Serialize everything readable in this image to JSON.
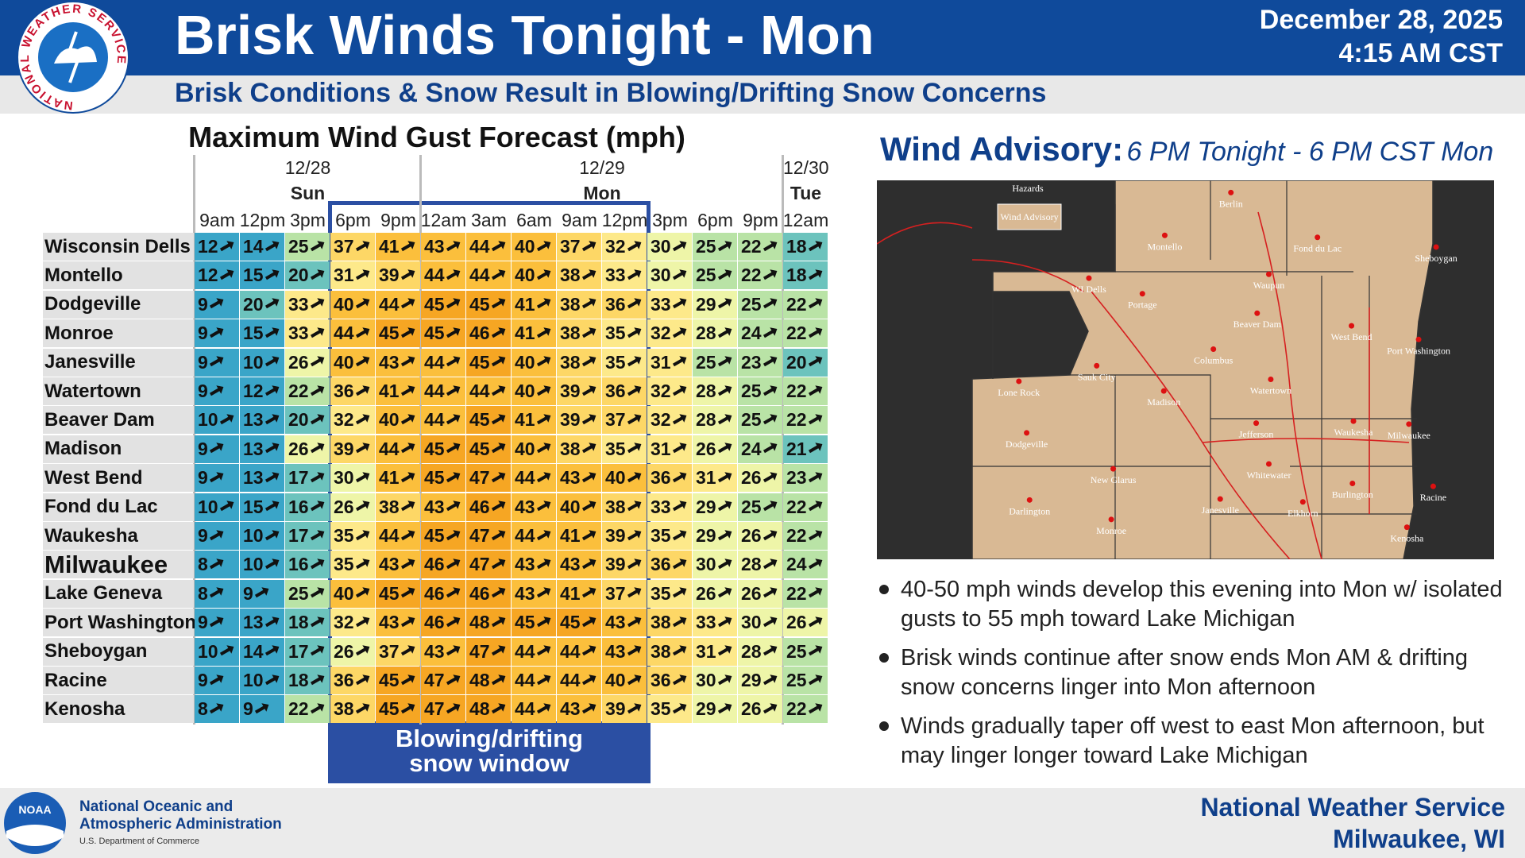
{
  "header": {
    "title": "Brisk Winds Tonight - Mon",
    "subtitle": "Brisk Conditions & Snow Result in Blowing/Drifting Snow Concerns",
    "date": "December 28, 2025",
    "time": "4:15 AM CST",
    "logo_text": "NATIONAL WEATHER SERVICE"
  },
  "table": {
    "title": "Maximum Wind Gust Forecast (mph)",
    "dates": [
      "12/28",
      "12/29",
      "12/30"
    ],
    "days": [
      "Sun",
      "Mon",
      "Tue"
    ],
    "times": [
      "9am",
      "12pm",
      "3pm",
      "6pm",
      "9pm",
      "12am",
      "3am",
      "6am",
      "9am",
      "12pm",
      "3pm",
      "6pm",
      "9pm",
      "12am"
    ],
    "rows": [
      {
        "name": "Wisconsin Dells",
        "values": [
          12,
          14,
          25,
          37,
          41,
          43,
          44,
          40,
          37,
          32,
          30,
          25,
          22,
          18
        ]
      },
      {
        "name": "Montello",
        "values": [
          12,
          15,
          20,
          31,
          39,
          44,
          44,
          40,
          38,
          33,
          30,
          25,
          22,
          18
        ]
      },
      {
        "name": "Dodgeville",
        "values": [
          9,
          20,
          33,
          40,
          44,
          45,
          45,
          41,
          38,
          36,
          33,
          29,
          25,
          22
        ]
      },
      {
        "name": "Monroe",
        "values": [
          9,
          15,
          33,
          44,
          45,
          45,
          46,
          41,
          38,
          35,
          32,
          28,
          24,
          22
        ]
      },
      {
        "name": "Janesville",
        "values": [
          9,
          10,
          26,
          40,
          43,
          44,
          45,
          40,
          38,
          35,
          31,
          25,
          23,
          20
        ]
      },
      {
        "name": "Watertown",
        "values": [
          9,
          12,
          22,
          36,
          41,
          44,
          44,
          40,
          39,
          36,
          32,
          28,
          25,
          22
        ]
      },
      {
        "name": "Beaver Dam",
        "values": [
          10,
          13,
          20,
          32,
          40,
          44,
          45,
          41,
          39,
          37,
          32,
          28,
          25,
          22
        ]
      },
      {
        "name": "Madison",
        "values": [
          9,
          13,
          26,
          39,
          44,
          45,
          45,
          40,
          38,
          35,
          31,
          26,
          24,
          21
        ]
      },
      {
        "name": "West Bend",
        "values": [
          9,
          13,
          17,
          30,
          41,
          45,
          47,
          44,
          43,
          40,
          36,
          31,
          26,
          23
        ]
      },
      {
        "name": "Fond du Lac",
        "values": [
          10,
          15,
          16,
          26,
          38,
          43,
          46,
          43,
          40,
          38,
          33,
          29,
          25,
          22
        ]
      },
      {
        "name": "Waukesha",
        "values": [
          9,
          10,
          17,
          35,
          44,
          45,
          47,
          44,
          41,
          39,
          35,
          29,
          26,
          22
        ]
      },
      {
        "name": "Milwaukee",
        "values": [
          8,
          10,
          16,
          35,
          43,
          46,
          47,
          43,
          43,
          39,
          36,
          30,
          28,
          24
        ]
      },
      {
        "name": "Lake Geneva",
        "values": [
          8,
          9,
          25,
          40,
          45,
          46,
          46,
          43,
          41,
          37,
          35,
          26,
          26,
          22
        ]
      },
      {
        "name": "Port Washington",
        "values": [
          9,
          13,
          18,
          32,
          43,
          46,
          48,
          45,
          45,
          43,
          38,
          33,
          30,
          26
        ]
      },
      {
        "name": "Sheboygan",
        "values": [
          10,
          14,
          17,
          26,
          37,
          43,
          47,
          44,
          44,
          43,
          38,
          31,
          28,
          25
        ]
      },
      {
        "name": "Racine",
        "values": [
          9,
          10,
          18,
          36,
          45,
          47,
          48,
          44,
          44,
          40,
          36,
          30,
          29,
          25
        ]
      },
      {
        "name": "Kenosha",
        "values": [
          8,
          9,
          22,
          38,
          45,
          47,
          48,
          44,
          43,
          39,
          35,
          29,
          26,
          22
        ]
      }
    ]
  },
  "snow_window": "Blowing/drifting snow window",
  "advisory": {
    "label": "Wind Advisory:",
    "period": "6 PM Tonight - 6 PM CST Mon"
  },
  "map": {
    "legend_title": "Hazards",
    "legend_item": "Wind Advisory",
    "places": [
      "Berlin",
      "Montello",
      "Fond du Lac",
      "Sheboygan",
      "WI Dells",
      "Waupun",
      "Portage",
      "Beaver Dam",
      "West Bend",
      "Port Washington",
      "Columbus",
      "Sauk City",
      "Lone Rock",
      "Madison",
      "Watertown",
      "Jefferson",
      "Waukesha",
      "Milwaukee",
      "Dodgeville",
      "Whitewater",
      "New Glarus",
      "Burlington",
      "Racine",
      "Darlington",
      "Janesville",
      "Elkhorn",
      "Monroe",
      "Kenosha"
    ]
  },
  "bullets": [
    "40-50 mph winds develop this evening into Mon w/ isolated gusts to 55 mph toward Lake Michigan",
    "Brisk winds continue after snow ends Mon AM & drifting snow concerns linger into Mon afternoon",
    "Winds gradually taper off west to east Mon afternoon, but may linger longer toward Lake Michigan"
  ],
  "footer": {
    "noaa_logo": "NOAA",
    "noaa": [
      "National Oceanic and",
      "Atmospheric Administration"
    ],
    "department": "U.S. Department of Commerce",
    "office": [
      "National Weather Service",
      "Milwaukee, WI"
    ]
  }
}
